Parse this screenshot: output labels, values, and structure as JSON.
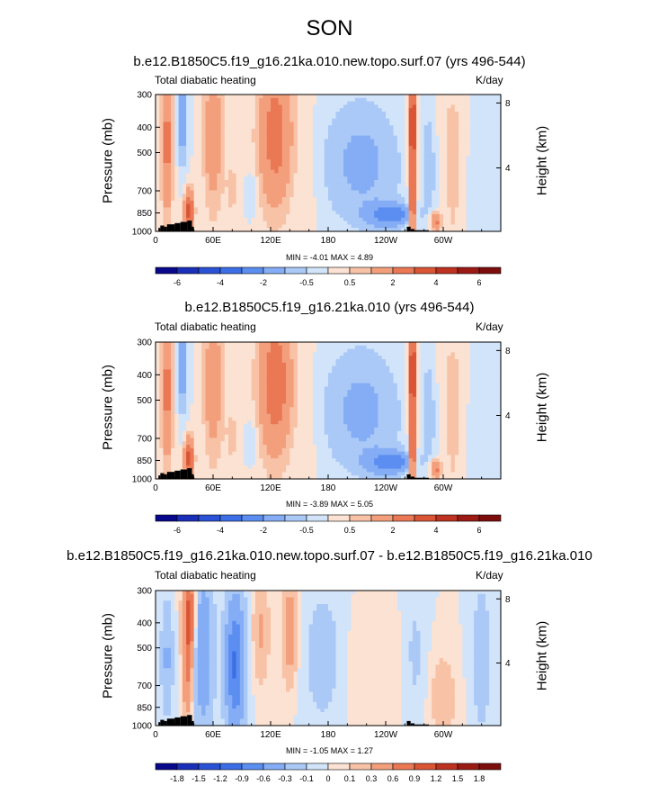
{
  "title": "SON",
  "chart_data": [
    {
      "type": "heatmap",
      "title": "b.e12.B1850C5.f19_g16.21ka.010.new.topo.surf.07 (yrs 496-544)",
      "variable": "Total diabatic heating",
      "units": "K/day",
      "ylabel": "Pressure (mb)",
      "ylabel_right": "Height (km)",
      "x_ticks": [
        "0",
        "60E",
        "120E",
        "180",
        "120W",
        "60W"
      ],
      "y_ticks": [
        "300",
        "400",
        "500",
        "700",
        "850",
        "1000"
      ],
      "y_right_ticks": [
        "8",
        "4"
      ],
      "min_label": "MIN = -4.01 MAX = 4.89",
      "min": -4.01,
      "max": 4.89,
      "colorbar_labels": [
        "-6",
        "-4",
        "-2",
        "-0.5",
        "0.5",
        "2",
        "4",
        "6"
      ]
    },
    {
      "type": "heatmap",
      "title": "b.e12.B1850C5.f19_g16.21ka.010 (yrs 496-544)",
      "variable": "Total diabatic heating",
      "units": "K/day",
      "ylabel": "Pressure (mb)",
      "ylabel_right": "Height (km)",
      "x_ticks": [
        "0",
        "60E",
        "120E",
        "180",
        "120W",
        "60W"
      ],
      "y_ticks": [
        "300",
        "400",
        "500",
        "700",
        "850",
        "1000"
      ],
      "y_right_ticks": [
        "8",
        "4"
      ],
      "min_label": "MIN = -3.89 MAX = 5.05",
      "min": -3.89,
      "max": 5.05,
      "colorbar_labels": [
        "-6",
        "-4",
        "-2",
        "-0.5",
        "0.5",
        "2",
        "4",
        "6"
      ]
    },
    {
      "type": "heatmap",
      "title": "b.e12.B1850C5.f19_g16.21ka.010.new.topo.surf.07 - b.e12.B1850C5.f19_g16.21ka.010",
      "variable": "Total diabatic heating",
      "units": "K/day",
      "ylabel": "Pressure (mb)",
      "ylabel_right": "Height (km)",
      "x_ticks": [
        "0",
        "60E",
        "120E",
        "180",
        "120W",
        "60W"
      ],
      "y_ticks": [
        "300",
        "400",
        "500",
        "700",
        "850",
        "1000"
      ],
      "y_right_ticks": [
        "8",
        "4"
      ],
      "min_label": "MIN = -1.05 MAX = 1.27",
      "min": -1.05,
      "max": 1.27,
      "colorbar_labels": [
        "-1.8",
        "-1.5",
        "-1.2",
        "-0.9",
        "-0.6",
        "-0.3",
        "-0.1",
        "0",
        "0.1",
        "0.3",
        "0.6",
        "0.9",
        "1.2",
        "1.5",
        "1.8"
      ]
    }
  ],
  "palette": [
    "#08088c",
    "#1a2fb8",
    "#2a52d6",
    "#3c6ee6",
    "#5b8ef0",
    "#84adf5",
    "#aac9f7",
    "#d2e4fa",
    "#fbe2d3",
    "#f8c2a6",
    "#f39f7c",
    "#ea7855",
    "#d95535",
    "#bd3220",
    "#9c1a14",
    "#7d0d0d"
  ]
}
